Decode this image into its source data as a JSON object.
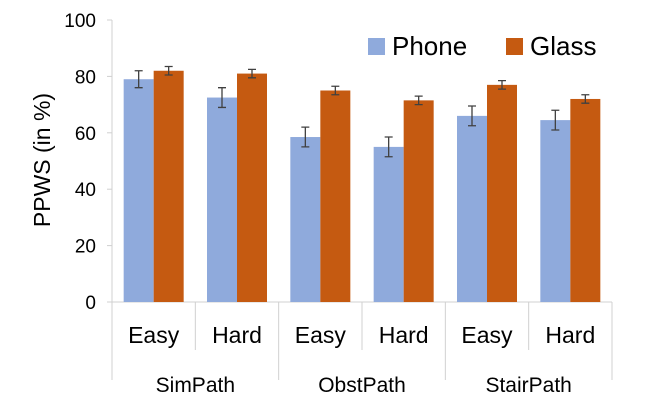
{
  "chart_data": {
    "type": "bar",
    "ylabel": "PPWS (in %)",
    "ylim": [
      0,
      100
    ],
    "yticks": [
      "0",
      "20",
      "40",
      "60",
      "80",
      "100"
    ],
    "grid": false,
    "legend_position": "top-right",
    "groups": [
      "SimPath",
      "ObstPath",
      "StairPath"
    ],
    "categories": [
      "Easy",
      "Hard",
      "Easy",
      "Hard",
      "Easy",
      "Hard"
    ],
    "series": [
      {
        "name": "Phone",
        "color": "#8faadc",
        "values": [
          79,
          72.5,
          58.5,
          55,
          66,
          64.5
        ],
        "errors": [
          3,
          3.5,
          3.5,
          3.5,
          3.5,
          3.5
        ]
      },
      {
        "name": "Glass",
        "color": "#c55a11",
        "values": [
          82,
          81,
          75,
          71.5,
          77,
          72
        ],
        "errors": [
          1.5,
          1.5,
          1.5,
          1.5,
          1.5,
          1.5
        ]
      }
    ]
  }
}
